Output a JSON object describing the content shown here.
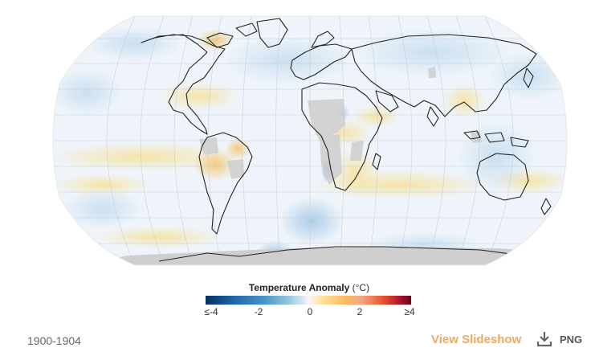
{
  "map": {
    "projection": "robinson-like",
    "graticule": true
  },
  "legend": {
    "title": "Temperature Anomaly",
    "unit": "(°C)",
    "ticks": [
      "≤-4",
      "-2",
      "0",
      "2",
      "≥4"
    ],
    "scale_min": -4,
    "scale_max": 4,
    "colors": {
      "cold": "#053061",
      "cool": "#4393c3",
      "neutral": "#f7f7f7",
      "warm": "#fdb863",
      "hot": "#67001f",
      "no_data": "#cfcfcf"
    }
  },
  "footer": {
    "period": "1900-1904",
    "slideshow_label": "View Slideshow",
    "download_icon": "download-icon",
    "download_label": "PNG"
  }
}
